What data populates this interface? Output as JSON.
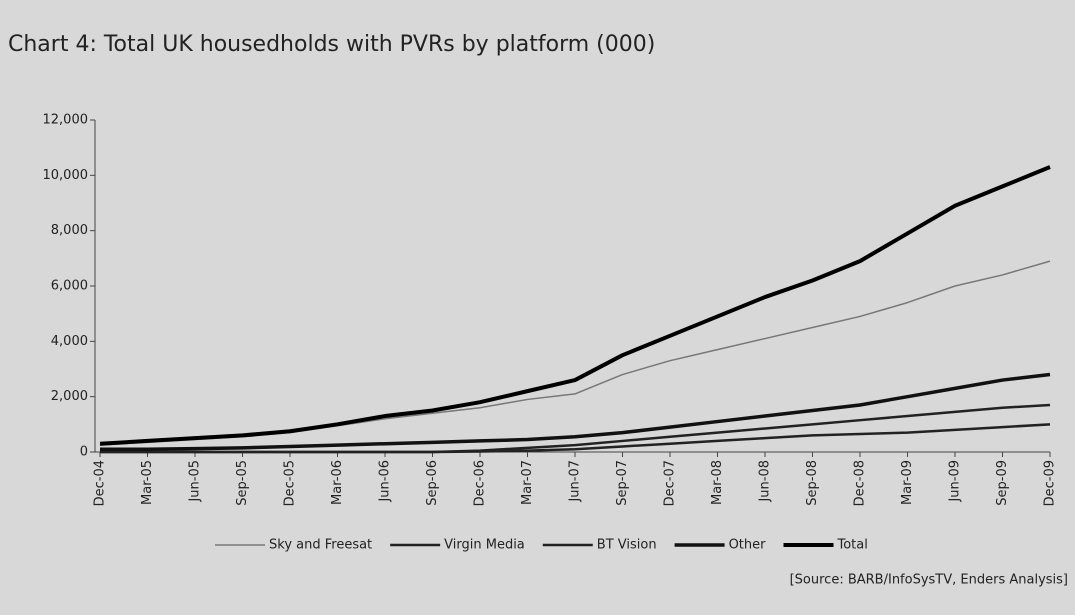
{
  "chart_data": {
    "type": "line",
    "title": "Chart 4: Total UK housedholds with PVRs by platform (000)",
    "source": "[Source: BARB/InfoSysTV, Enders Analysis]",
    "categories": [
      "Dec-04",
      "Mar-05",
      "Jun-05",
      "Sep-05",
      "Dec-05",
      "Mar-06",
      "Jun-06",
      "Sep-06",
      "Dec-06",
      "Mar-07",
      "Jun-07",
      "Sep-07",
      "Dec-07",
      "Mar-08",
      "Jun-08",
      "Sep-08",
      "Dec-08",
      "Mar-09",
      "Jun-09",
      "Sep-09",
      "Dec-09"
    ],
    "series": [
      {
        "name": "Sky and Freesat",
        "color": "#777777",
        "width": 1.5,
        "values": [
          250,
          350,
          450,
          550,
          700,
          950,
          1200,
          1400,
          1600,
          1900,
          2100,
          2800,
          3300,
          3700,
          4100,
          4500,
          4900,
          5400,
          6000,
          6400,
          6900
        ]
      },
      {
        "name": "Virgin Media",
        "color": "#222222",
        "width": 2.5,
        "values": [
          0,
          0,
          0,
          0,
          0,
          0,
          0,
          0,
          50,
          150,
          250,
          400,
          550,
          700,
          850,
          1000,
          1150,
          1300,
          1450,
          1600,
          1700
        ]
      },
      {
        "name": "BT Vision",
        "color": "#222222",
        "width": 2.5,
        "values": [
          0,
          0,
          0,
          0,
          0,
          0,
          0,
          0,
          20,
          50,
          100,
          200,
          300,
          400,
          500,
          600,
          650,
          700,
          800,
          900,
          1000
        ]
      },
      {
        "name": "Other",
        "color": "#111111",
        "width": 3.5,
        "values": [
          100,
          100,
          120,
          150,
          200,
          250,
          300,
          350,
          400,
          450,
          550,
          700,
          900,
          1100,
          1300,
          1500,
          1700,
          2000,
          2300,
          2600,
          2800
        ]
      },
      {
        "name": "Total",
        "color": "#000000",
        "width": 4,
        "values": [
          300,
          400,
          500,
          600,
          750,
          1000,
          1300,
          1500,
          1800,
          2200,
          2600,
          3500,
          4200,
          4900,
          5600,
          6200,
          6900,
          7900,
          8900,
          9600,
          10300
        ]
      }
    ],
    "ylim": [
      0,
      12000
    ],
    "yticks": [
      0,
      {
        "value": 2000,
        "label": "2,000"
      },
      {
        "value": 4000,
        "label": "4,000"
      },
      {
        "value": 6000,
        "label": "6,000"
      },
      {
        "value": 8000,
        "label": "8,000"
      },
      {
        "value": 10000,
        "label": "10,000"
      },
      {
        "value": 12000,
        "label": "12,000"
      }
    ]
  }
}
